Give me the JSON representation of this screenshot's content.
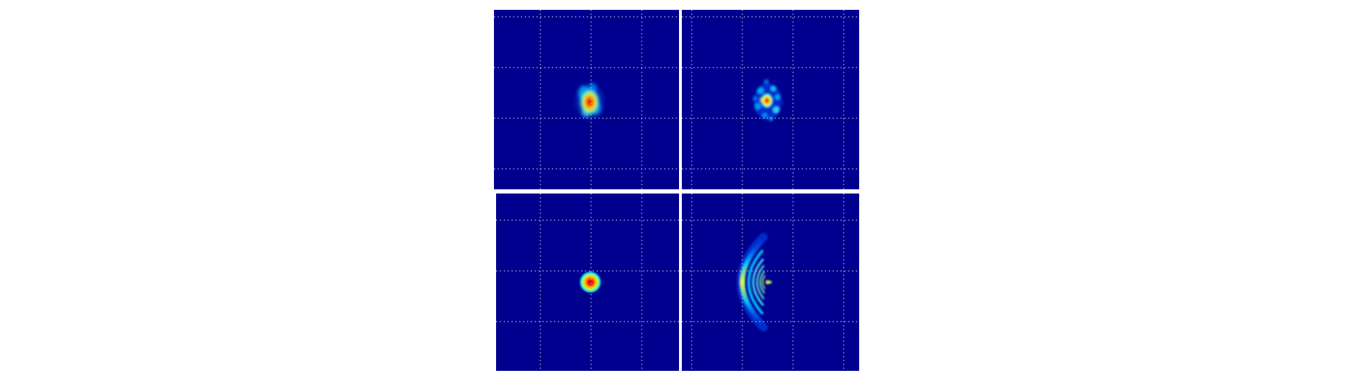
{
  "figure": {
    "panels": [
      {
        "id": "panel-tl",
        "content": "measured-focal-spot"
      },
      {
        "id": "panel-tr",
        "content": "measured-speckled-focal-spot"
      },
      {
        "id": "panel-bl",
        "content": "simulated-focal-spot"
      },
      {
        "id": "panel-br",
        "content": "simulated-aberrated-arc-pattern"
      }
    ],
    "colormap": "jet",
    "background_color": "#00008f",
    "grid": {
      "style": "dotted",
      "color": "#c8c8c8"
    }
  }
}
